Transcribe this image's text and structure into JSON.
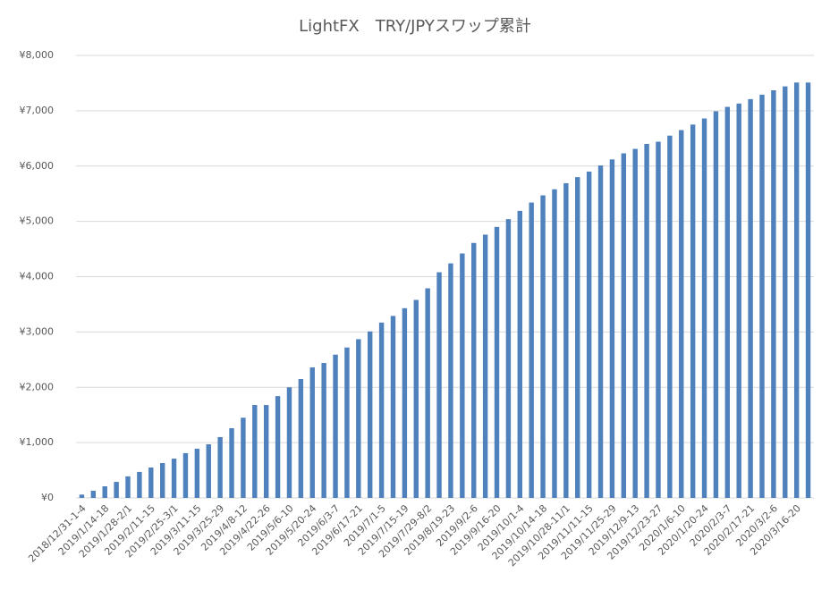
{
  "chart_data": {
    "type": "bar",
    "title": "LightFX　TRY/JPYスワップ累計",
    "categories": [
      "2018/12/31-1-4",
      null,
      "2019/1/14-18",
      null,
      "2019/1/28-2/1",
      null,
      "2019/2/11-15",
      null,
      "2019/2/25-3/1",
      null,
      "2019/3/11-15",
      null,
      "2019/3/25-29",
      null,
      "2019/4/8-12",
      null,
      "2019/4/22-26",
      null,
      "2019/5/6-10",
      null,
      "2019/5/20-24",
      null,
      "2019/6/3-7",
      null,
      "2019/6/17-21",
      null,
      "2019/7/1-5",
      null,
      "2019/7/15-19",
      null,
      "2019/7/29-8/2",
      null,
      "2019/8/19-23",
      null,
      "2019/9/2-6",
      null,
      "2019/9/16-20",
      null,
      "2019/10/1-4",
      null,
      "2019/10/14-18",
      null,
      "2019/10/28-11/1",
      null,
      "2019/11/11-15",
      null,
      "2019/11/25-29",
      null,
      "2019/12/9-13",
      null,
      "2019/12/23-27",
      null,
      "2020/1/6-10",
      null,
      "2020/1/20-24",
      null,
      "2020/2/3-7",
      null,
      "2020/2/17-21",
      null,
      "2020/3/2-6",
      null,
      "2020/3/16-20",
      null
    ],
    "values": [
      60,
      130,
      210,
      290,
      390,
      470,
      550,
      630,
      710,
      810,
      890,
      970,
      1100,
      1260,
      1450,
      1680,
      1680,
      1840,
      2000,
      2150,
      2360,
      2440,
      2590,
      2720,
      2870,
      3010,
      3170,
      3290,
      3430,
      3580,
      3790,
      4080,
      4240,
      4420,
      4610,
      4760,
      4900,
      5040,
      5190,
      5340,
      5470,
      5580,
      5690,
      5800,
      5900,
      6010,
      6120,
      6230,
      6310,
      6400,
      6440,
      6550,
      6650,
      6750,
      6860,
      6990,
      7070,
      7130,
      7210,
      7290,
      7370,
      7440,
      7510,
      7510
    ],
    "color": "#4f81bd",
    "ylim": [
      0,
      8000
    ],
    "yticks": [
      {
        "value": 0,
        "label": "¥0"
      },
      {
        "value": 1000,
        "label": "¥1,000"
      },
      {
        "value": 2000,
        "label": "¥2,000"
      },
      {
        "value": 3000,
        "label": "¥3,000"
      },
      {
        "value": 4000,
        "label": "¥4,000"
      },
      {
        "value": 5000,
        "label": "¥5,000"
      },
      {
        "value": 6000,
        "label": "¥6,000"
      },
      {
        "value": 7000,
        "label": "¥7,000"
      },
      {
        "value": 8000,
        "label": "¥8,000"
      }
    ],
    "grid": true
  }
}
